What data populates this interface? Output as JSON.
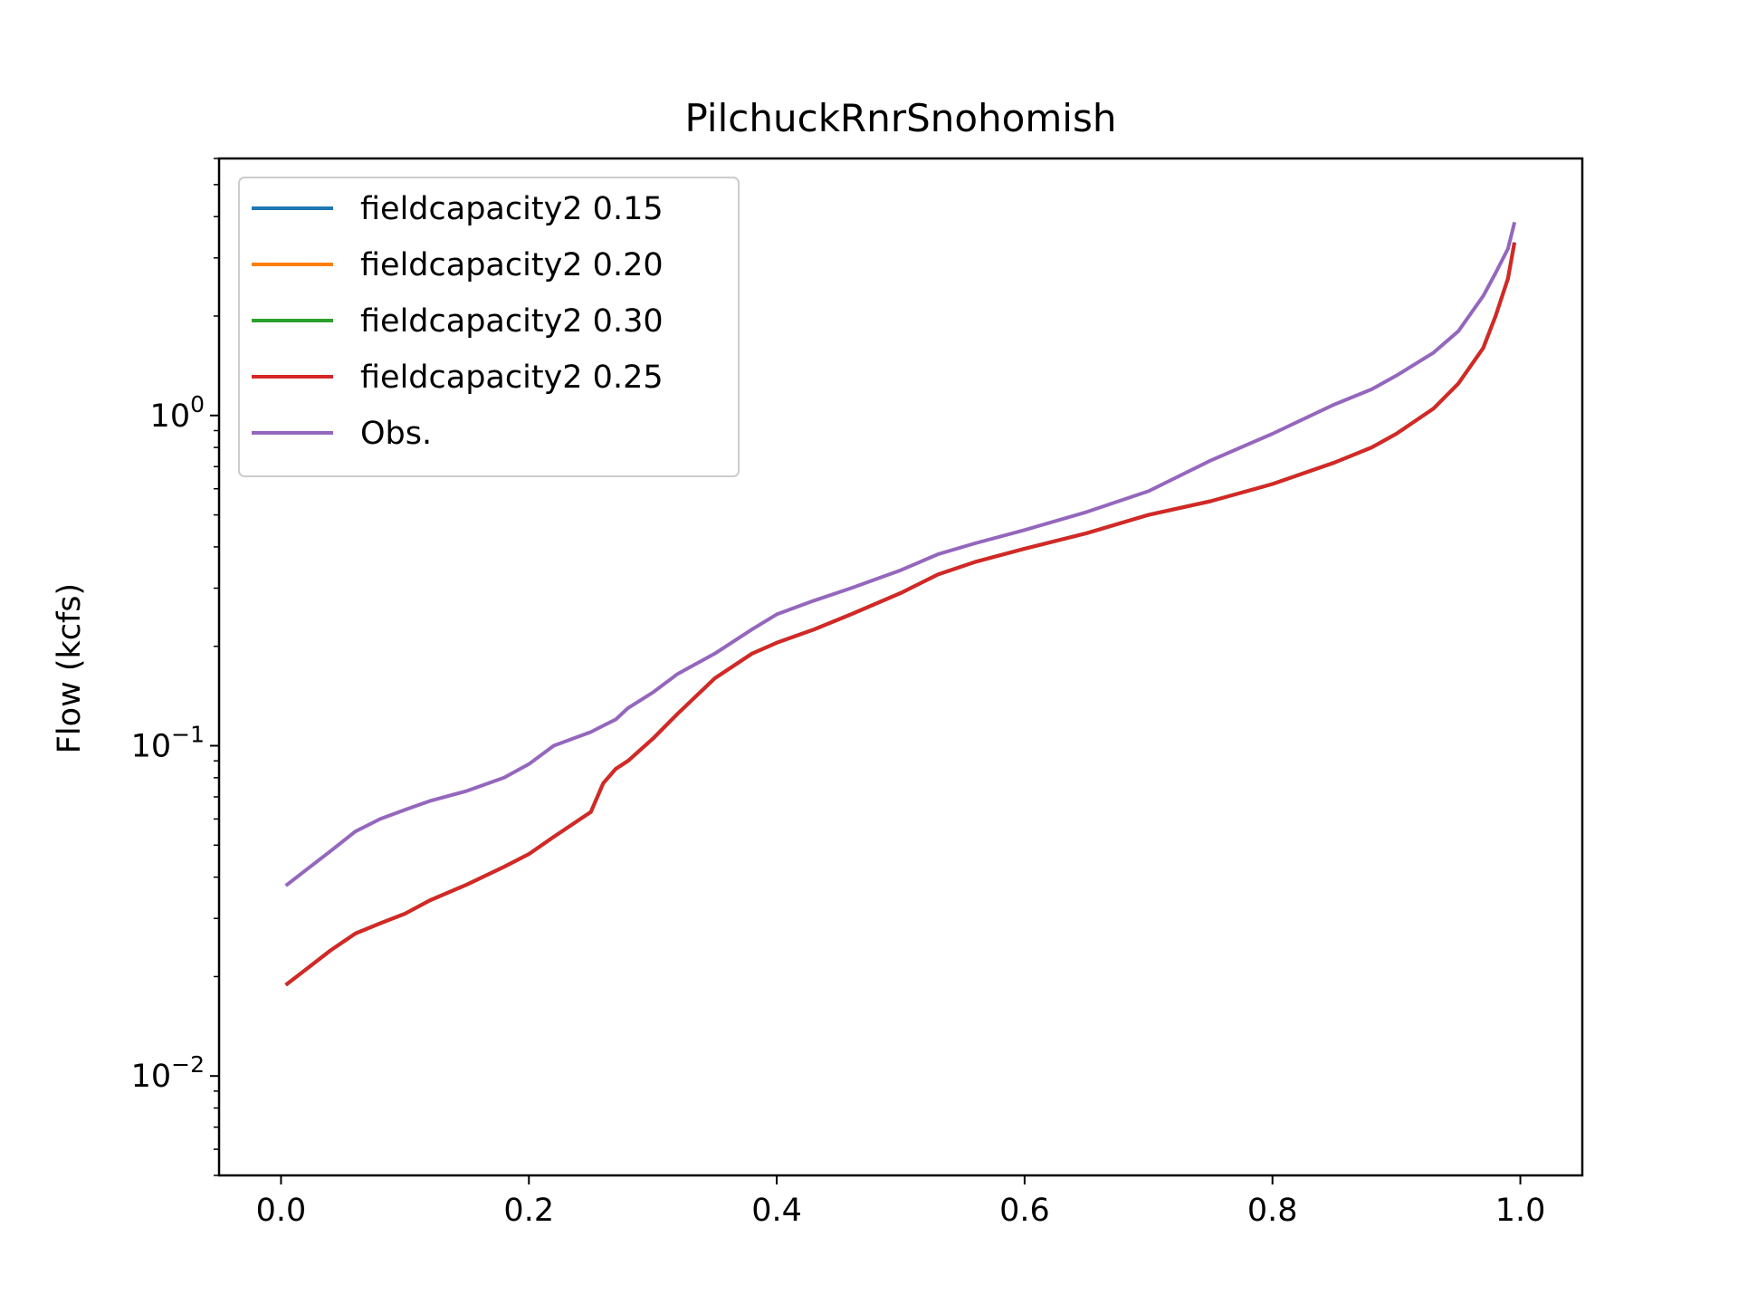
{
  "chart_data": {
    "type": "line",
    "title": "PilchuckRnrSnohomish",
    "xlabel": "",
    "ylabel": "Flow (kcfs)",
    "yscale": "log",
    "xlim": [
      -0.05,
      1.05
    ],
    "ylim": [
      0.005,
      6.0
    ],
    "x_ticks": [
      {
        "value": 0.0,
        "label": "0.0"
      },
      {
        "value": 0.2,
        "label": "0.2"
      },
      {
        "value": 0.4,
        "label": "0.4"
      },
      {
        "value": 0.6,
        "label": "0.6"
      },
      {
        "value": 0.8,
        "label": "0.8"
      },
      {
        "value": 1.0,
        "label": "1.0"
      }
    ],
    "y_ticks": [
      {
        "value": 1.0,
        "base": "10",
        "exp": "0"
      },
      {
        "value": 0.1,
        "base": "10",
        "exp": "−1"
      },
      {
        "value": 0.01,
        "base": "10",
        "exp": "−2"
      }
    ],
    "legend_position": "upper-left",
    "grid": false,
    "x": [
      0.005,
      0.02,
      0.04,
      0.06,
      0.08,
      0.1,
      0.12,
      0.15,
      0.18,
      0.2,
      0.22,
      0.25,
      0.26,
      0.27,
      0.28,
      0.3,
      0.32,
      0.35,
      0.38,
      0.4,
      0.43,
      0.46,
      0.5,
      0.53,
      0.56,
      0.6,
      0.65,
      0.7,
      0.75,
      0.8,
      0.85,
      0.88,
      0.9,
      0.93,
      0.95,
      0.97,
      0.98,
      0.99,
      0.995
    ],
    "series": [
      {
        "name": "fieldcapacity2 0.15",
        "color": "#1f77b4",
        "values": [
          0.019,
          0.021,
          0.024,
          0.027,
          0.029,
          0.031,
          0.034,
          0.038,
          0.043,
          0.047,
          0.053,
          0.063,
          0.077,
          0.085,
          0.09,
          0.105,
          0.125,
          0.16,
          0.19,
          0.205,
          0.225,
          0.25,
          0.29,
          0.33,
          0.36,
          0.395,
          0.44,
          0.5,
          0.55,
          0.62,
          0.72,
          0.8,
          0.88,
          1.05,
          1.25,
          1.6,
          2.0,
          2.6,
          3.3
        ]
      },
      {
        "name": "fieldcapacity2 0.20",
        "color": "#ff7f0e",
        "values": [
          0.019,
          0.021,
          0.024,
          0.027,
          0.029,
          0.031,
          0.034,
          0.038,
          0.043,
          0.047,
          0.053,
          0.063,
          0.077,
          0.085,
          0.09,
          0.105,
          0.125,
          0.16,
          0.19,
          0.205,
          0.225,
          0.25,
          0.29,
          0.33,
          0.36,
          0.395,
          0.44,
          0.5,
          0.55,
          0.62,
          0.72,
          0.8,
          0.88,
          1.05,
          1.25,
          1.6,
          2.0,
          2.6,
          3.3
        ]
      },
      {
        "name": "fieldcapacity2 0.30",
        "color": "#2ca02c",
        "values": [
          0.019,
          0.021,
          0.024,
          0.027,
          0.029,
          0.031,
          0.034,
          0.038,
          0.043,
          0.047,
          0.053,
          0.063,
          0.077,
          0.085,
          0.09,
          0.105,
          0.125,
          0.16,
          0.19,
          0.205,
          0.225,
          0.25,
          0.29,
          0.33,
          0.36,
          0.395,
          0.44,
          0.5,
          0.55,
          0.62,
          0.72,
          0.8,
          0.88,
          1.05,
          1.25,
          1.6,
          2.0,
          2.6,
          3.3
        ]
      },
      {
        "name": "fieldcapacity2 0.25",
        "color": "#d62728",
        "values": [
          0.019,
          0.021,
          0.024,
          0.027,
          0.029,
          0.031,
          0.034,
          0.038,
          0.043,
          0.047,
          0.053,
          0.063,
          0.077,
          0.085,
          0.09,
          0.105,
          0.125,
          0.16,
          0.19,
          0.205,
          0.225,
          0.25,
          0.29,
          0.33,
          0.36,
          0.395,
          0.44,
          0.5,
          0.55,
          0.62,
          0.72,
          0.8,
          0.88,
          1.05,
          1.25,
          1.6,
          2.0,
          2.6,
          3.3
        ]
      },
      {
        "name": "Obs.",
        "color": "#9467bd",
        "values": [
          0.038,
          0.042,
          0.048,
          0.055,
          0.06,
          0.064,
          0.068,
          0.073,
          0.08,
          0.088,
          0.1,
          0.11,
          0.115,
          0.12,
          0.13,
          0.145,
          0.165,
          0.19,
          0.225,
          0.25,
          0.275,
          0.3,
          0.34,
          0.38,
          0.41,
          0.45,
          0.51,
          0.59,
          0.73,
          0.88,
          1.08,
          1.2,
          1.32,
          1.55,
          1.8,
          2.3,
          2.7,
          3.2,
          3.8
        ]
      }
    ]
  }
}
